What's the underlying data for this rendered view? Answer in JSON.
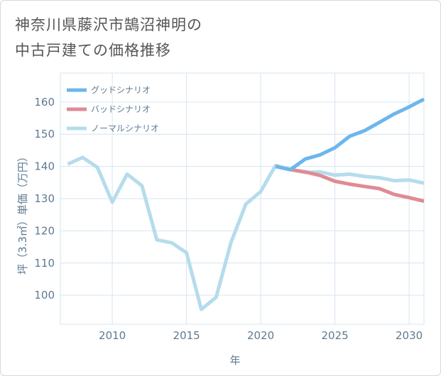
{
  "chart_data": {
    "type": "line",
    "title": "神奈川県藤沢市鵠沼神明の\n中古戸建ての価格推移",
    "xlabel": "年",
    "ylabel": "坪（3.3㎡）単価（万円）",
    "xlim": [
      2006.5,
      2031
    ],
    "ylim": [
      91,
      169
    ],
    "xticks": [
      2010,
      2015,
      2020,
      2025,
      2030
    ],
    "yticks": [
      100,
      110,
      120,
      130,
      140,
      150,
      160
    ],
    "grid": true,
    "legend_position": "top-left",
    "series": [
      {
        "name": "グッドシナリオ",
        "color": "#6db6ee",
        "x": [
          2021,
          2022,
          2023,
          2024,
          2025,
          2026,
          2027,
          2028,
          2029,
          2030,
          2031
        ],
        "y": [
          140,
          139,
          142.3,
          143.6,
          145.8,
          149.4,
          151.1,
          153.7,
          156.3,
          158.5,
          160.9
        ]
      },
      {
        "name": "バッドシナリオ",
        "color": "#e08a94",
        "x": [
          2021,
          2022,
          2023,
          2024,
          2025,
          2026,
          2027,
          2028,
          2029,
          2030,
          2031
        ],
        "y": [
          140,
          139,
          138.3,
          137.2,
          135.4,
          134.5,
          133.8,
          133.1,
          131.3,
          130.3,
          129.2
        ]
      },
      {
        "name": "ノーマルシナリオ",
        "color": "#b5dcec",
        "x": [
          2007,
          2008,
          2009,
          2010,
          2011,
          2012,
          2013,
          2014,
          2015,
          2016,
          2017,
          2018,
          2019,
          2020,
          2021,
          2022,
          2023,
          2024,
          2025,
          2026,
          2027,
          2028,
          2029,
          2030,
          2031
        ],
        "y": [
          140.7,
          142.8,
          139.7,
          128.9,
          137.6,
          134,
          117.2,
          116.3,
          113.2,
          95.6,
          99.4,
          116.4,
          128.3,
          132.2,
          140.3,
          139.1,
          138.1,
          138.3,
          137.3,
          137.6,
          136.9,
          136.5,
          135.6,
          135.8,
          134.8
        ]
      }
    ]
  }
}
